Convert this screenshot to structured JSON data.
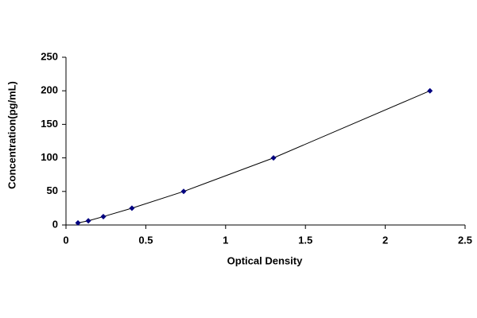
{
  "chart_data": {
    "type": "scatter",
    "x_label": "Optical Density",
    "y_label": "Concentration(pg/mL)",
    "x": [
      0.075,
      0.14,
      0.234,
      0.413,
      0.737,
      1.3,
      2.28
    ],
    "values": [
      3.12,
      6.25,
      12.5,
      25,
      50,
      100,
      200
    ],
    "color": "#000080",
    "line_color": "#000000",
    "line": true,
    "marker": "diamond",
    "grid": false,
    "xlim": [
      0,
      2.5
    ],
    "xticks": [
      0,
      0.5,
      1,
      1.5,
      2,
      2.5
    ],
    "ylim": [
      0,
      250
    ],
    "yticks": [
      0,
      50,
      100,
      150,
      200,
      250
    ]
  }
}
